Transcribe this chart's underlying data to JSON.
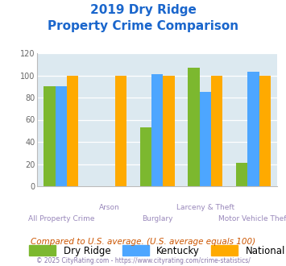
{
  "title_line1": "2019 Dry Ridge",
  "title_line2": "Property Crime Comparison",
  "categories": [
    "All Property Crime",
    "Arson",
    "Burglary",
    "Larceny & Theft",
    "Motor Vehicle Theft"
  ],
  "series": {
    "Dry Ridge": [
      90,
      0,
      53,
      107,
      21
    ],
    "Kentucky": [
      90,
      0,
      101,
      85,
      103
    ],
    "National": [
      100,
      100,
      100,
      100,
      100
    ]
  },
  "colors": {
    "Dry Ridge": "#7cb82f",
    "Kentucky": "#4da6ff",
    "National": "#ffaa00"
  },
  "ylim": [
    0,
    120
  ],
  "yticks": [
    0,
    20,
    40,
    60,
    80,
    100,
    120
  ],
  "bg_color": "#dce9f0",
  "xlabel_top": [
    "",
    "Arson",
    "",
    "Larceny & Theft",
    ""
  ],
  "xlabel_bottom": [
    "All Property Crime",
    "",
    "Burglary",
    "",
    "Motor Vehicle Theft"
  ],
  "footer_text": "Compared to U.S. average. (U.S. average equals 100)",
  "copyright_text": "© 2025 CityRating.com - https://www.cityrating.com/crime-statistics/",
  "title_color": "#1a66cc",
  "footer_color": "#cc5500",
  "copyright_color": "#8877aa",
  "xlabel_color": "#9988bb"
}
